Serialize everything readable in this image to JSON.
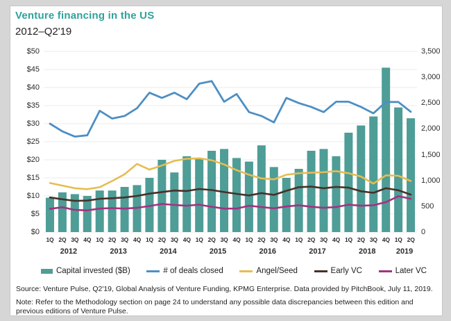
{
  "page": {
    "title": "Venture financing in the US",
    "subtitle": "2012–Q2'19",
    "source": "Source: Venture Pulse, Q2'19, Global Analysis of Venture Funding, KPMG Enterprise. Data provided by PitchBook, July 11, 2019.",
    "note": "Note: Refer to the Methodology section on page 24 to understand any possible data discrepancies between this edition and previous editions of Venture Pulse."
  },
  "colors": {
    "title_teal": "#2fa29b",
    "bar_teal": "#4e9d97",
    "deals_blue": "#4d8fc4",
    "angel_yellow": "#e5bd52",
    "early_brown": "#483028",
    "later_magenta": "#a3327f",
    "gridline": "#ebebeb",
    "axis_text": "#2b2b2b"
  },
  "legend": [
    {
      "label": "Capital invested ($B)",
      "type": "bar",
      "color": "#4e9d97"
    },
    {
      "label": "# of deals closed",
      "type": "line",
      "color": "#4d8fc4"
    },
    {
      "label": "Angel/Seed",
      "type": "line",
      "color": "#e5bd52"
    },
    {
      "label": "Early VC",
      "type": "line",
      "color": "#483028"
    },
    {
      "label": "Later VC",
      "type": "line",
      "color": "#a3327f"
    }
  ],
  "chart_data": {
    "type": "bar",
    "subtype": "bar-line combo, dual axis",
    "title": "Venture financing in the US",
    "subtitle": "2012–Q2'19",
    "categories": [
      "1Q",
      "2Q",
      "3Q",
      "4Q",
      "1Q",
      "2Q",
      "3Q",
      "4Q",
      "1Q",
      "2Q",
      "3Q",
      "4Q",
      "1Q",
      "2Q",
      "3Q",
      "4Q",
      "1Q",
      "2Q",
      "3Q",
      "4Q",
      "1Q",
      "2Q",
      "3Q",
      "4Q",
      "1Q",
      "2Q",
      "3Q",
      "4Q",
      "1Q",
      "2Q"
    ],
    "year_groups": [
      {
        "label": "2012",
        "span": 4
      },
      {
        "label": "2013",
        "span": 4
      },
      {
        "label": "2014",
        "span": 4
      },
      {
        "label": "2015",
        "span": 4
      },
      {
        "label": "2016",
        "span": 4
      },
      {
        "label": "2017",
        "span": 4
      },
      {
        "label": "2018",
        "span": 4
      },
      {
        "label": "2019",
        "span": 2
      }
    ],
    "left_axis": {
      "min": 0,
      "max": 50,
      "step": 5,
      "tick_labels": [
        "$0",
        "$5",
        "$10",
        "$15",
        "$20",
        "$25",
        "$30",
        "$35",
        "$40",
        "$45",
        "$50"
      ],
      "applies_to": "Capital invested ($B)",
      "grid": true
    },
    "right_axis": {
      "min": 0,
      "max": 3500,
      "step": 500,
      "tick_labels": [
        "0",
        "500",
        "1,000",
        "1,500",
        "2,000",
        "2,500",
        "3,000",
        "3,500"
      ],
      "applies_to": "deal counts",
      "grid": false
    },
    "legend_position": "bottom",
    "series": [
      {
        "name": "Capital invested ($B)",
        "type": "bar",
        "axis": "left",
        "color": "#4e9d97",
        "values": [
          9.5,
          11.0,
          10.5,
          10.0,
          11.5,
          11.5,
          12.5,
          13.0,
          15.0,
          20.0,
          16.5,
          21.0,
          20.5,
          22.5,
          23.0,
          20.5,
          19.5,
          24.0,
          18.0,
          15.0,
          17.5,
          22.5,
          23.0,
          21.0,
          27.5,
          29.5,
          32.0,
          45.5,
          34.5,
          31.5
        ]
      },
      {
        "name": "# of deals closed",
        "type": "line",
        "axis": "right",
        "color": "#4d8fc4",
        "values": [
          2100,
          1950,
          1850,
          1875,
          2350,
          2200,
          2250,
          2400,
          2700,
          2600,
          2700,
          2575,
          2875,
          2925,
          2525,
          2675,
          2325,
          2250,
          2125,
          2600,
          2500,
          2425,
          2325,
          2525,
          2525,
          2425,
          2300,
          2520,
          2520,
          2330
        ]
      },
      {
        "name": "Angel/Seed",
        "type": "line",
        "axis": "right",
        "color": "#e5bd52",
        "values": [
          950,
          900,
          850,
          830,
          870,
          990,
          1120,
          1320,
          1210,
          1290,
          1380,
          1420,
          1430,
          1390,
          1310,
          1200,
          1110,
          1040,
          1020,
          1110,
          1140,
          1150,
          1160,
          1180,
          1140,
          1075,
          940,
          1100,
          1090,
          990
        ]
      },
      {
        "name": "Early VC",
        "type": "line",
        "axis": "right",
        "color": "#483028",
        "values": [
          670,
          635,
          605,
          610,
          645,
          655,
          670,
          700,
          745,
          775,
          805,
          795,
          835,
          815,
          775,
          740,
          710,
          755,
          720,
          800,
          870,
          880,
          850,
          875,
          860,
          790,
          760,
          850,
          810,
          725
        ]
      },
      {
        "name": "Later VC",
        "type": "line",
        "axis": "right",
        "color": "#a3327f",
        "values": [
          450,
          480,
          430,
          420,
          455,
          465,
          455,
          470,
          505,
          545,
          525,
          510,
          530,
          490,
          455,
          455,
          510,
          485,
          460,
          495,
          520,
          490,
          470,
          485,
          530,
          510,
          520,
          580,
          695,
          645
        ]
      }
    ]
  }
}
